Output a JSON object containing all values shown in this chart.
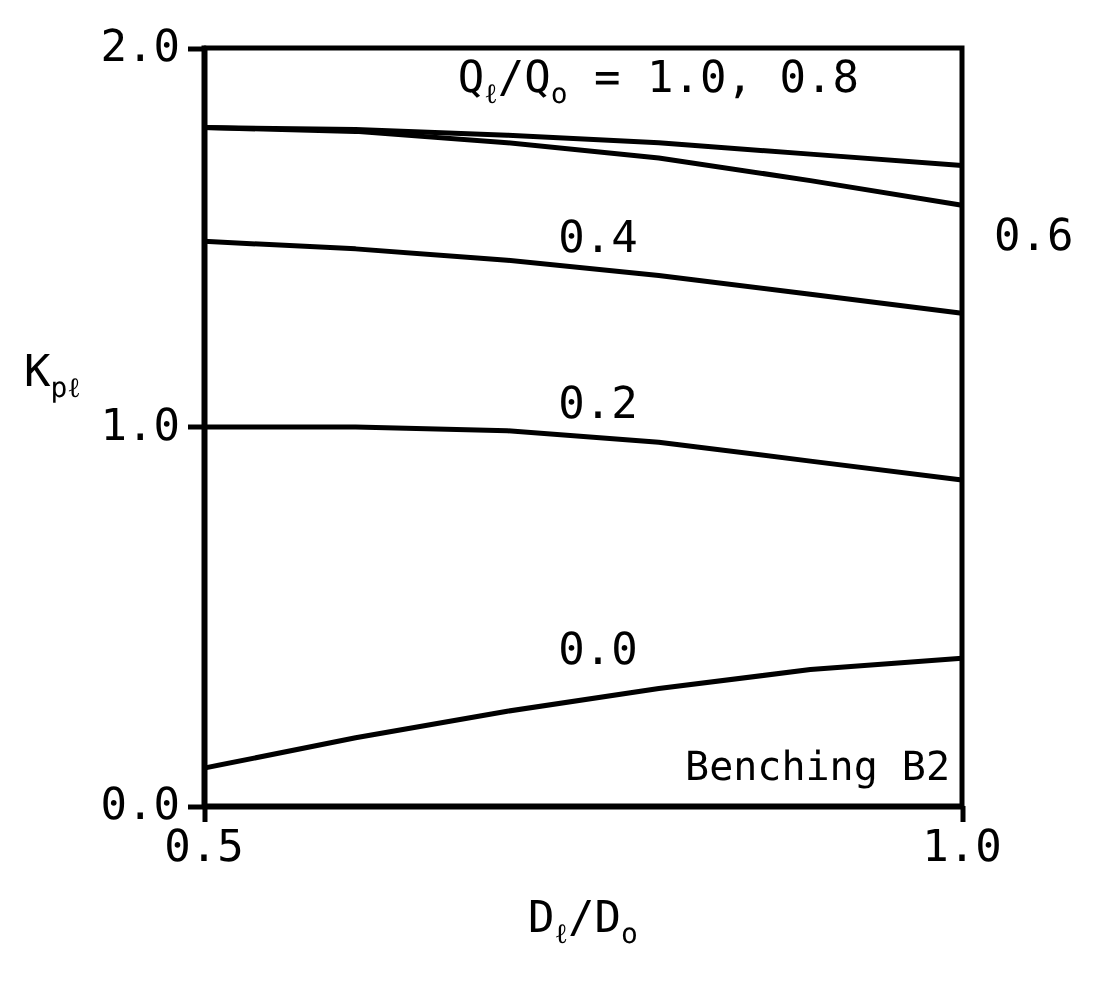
{
  "chart_data": {
    "type": "line",
    "xlabel": "D$_{ℓ}$/D$_{o}$",
    "ylabel": "K$_{pℓ}$",
    "annotations": [
      "Benching B2"
    ],
    "x": [
      0.5,
      0.6,
      0.7,
      0.8,
      0.9,
      1.0
    ],
    "xlim": [
      0.5,
      1.0
    ],
    "xticks": [
      0.5,
      {
        "value": 1.0,
        "label": "1.0"
      }
    ],
    "ylim": [
      0,
      2
    ],
    "yticks": [
      {
        "value": 0,
        "label": "0.0"
      },
      {
        "value": 1,
        "label": "1.0"
      },
      {
        "value": 2,
        "label": "2.0"
      }
    ],
    "grid": false,
    "legend": false,
    "marker": "none",
    "line_style": "solid",
    "series": [
      {
        "name": "Q$_{ℓ}$/Q$_{o}$ = 1.0, 0.8",
        "color": "#000000",
        "values": [
          1.79,
          1.785,
          1.77,
          1.75,
          1.72,
          1.69
        ]
      },
      {
        "name": "0.6",
        "color": "#000000",
        "values": [
          1.79,
          1.78,
          1.75,
          1.71,
          1.65,
          1.585
        ]
      },
      {
        "name": "0.4",
        "color": "#000000",
        "values": [
          1.49,
          1.47,
          1.44,
          1.4,
          1.35,
          1.3
        ]
      },
      {
        "name": "0.2",
        "color": "#000000",
        "values": [
          1.0,
          1.0,
          0.99,
          0.96,
          0.91,
          0.86
        ]
      },
      {
        "name": "0.0",
        "color": "#000000",
        "values": [
          0.1,
          0.18,
          0.25,
          0.31,
          0.36,
          0.39
        ]
      }
    ]
  }
}
